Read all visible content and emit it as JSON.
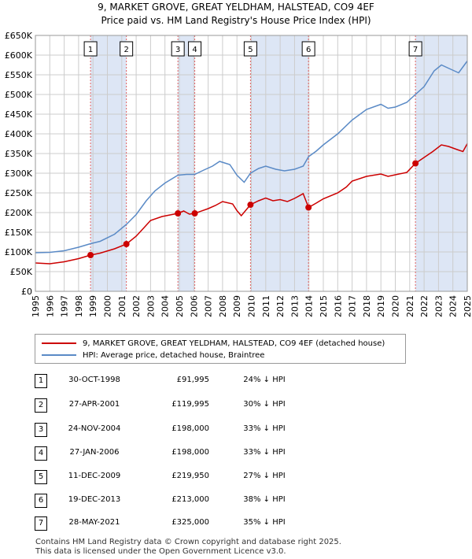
{
  "header": {
    "title_line1": "9, MARKET GROVE, GREAT YELDHAM, HALSTEAD, CO9 4EF",
    "title_line2": "Price paid vs. HM Land Registry's House Price Index (HPI)"
  },
  "colors": {
    "property": "#cc0000",
    "hpi": "#5a8ac6",
    "shade": "#dde6f5",
    "vline": "#e06060",
    "grid": "#cccccc"
  },
  "chart_data": {
    "type": "line",
    "xlim": [
      1995,
      2025
    ],
    "ylim": [
      0,
      650000
    ],
    "yticks": [
      {
        "v": 0,
        "label": "£0"
      },
      {
        "v": 50000,
        "label": "£50K"
      },
      {
        "v": 100000,
        "label": "£100K"
      },
      {
        "v": 150000,
        "label": "£150K"
      },
      {
        "v": 200000,
        "label": "£200K"
      },
      {
        "v": 250000,
        "label": "£250K"
      },
      {
        "v": 300000,
        "label": "£300K"
      },
      {
        "v": 350000,
        "label": "£350K"
      },
      {
        "v": 400000,
        "label": "£400K"
      },
      {
        "v": 450000,
        "label": "£450K"
      },
      {
        "v": 500000,
        "label": "£500K"
      },
      {
        "v": 550000,
        "label": "£550K"
      },
      {
        "v": 600000,
        "label": "£600K"
      },
      {
        "v": 650000,
        "label": "£650K"
      }
    ],
    "xticks": [
      "1995",
      "1996",
      "1997",
      "1998",
      "1999",
      "2000",
      "2001",
      "2002",
      "2003",
      "2004",
      "2005",
      "2006",
      "2007",
      "2008",
      "2009",
      "2010",
      "2011",
      "2012",
      "2013",
      "2014",
      "2015",
      "2016",
      "2017",
      "2018",
      "2019",
      "2020",
      "2021",
      "2022",
      "2023",
      "2024",
      "2025"
    ],
    "shaded_ranges": [
      [
        1998.83,
        2001.32
      ],
      [
        2004.9,
        2006.07
      ],
      [
        2009.94,
        2013.97
      ],
      [
        2021.4,
        2025.0
      ]
    ],
    "series": [
      {
        "name": "9, MARKET GROVE, GREAT YELDHAM, HALSTEAD, CO9 4EF (detached house)",
        "color": "#cc0000",
        "points": [
          [
            1995.0,
            72000
          ],
          [
            1996.0,
            70000
          ],
          [
            1997.0,
            75000
          ],
          [
            1998.0,
            83000
          ],
          [
            1998.83,
            91995
          ],
          [
            1999.5,
            97000
          ],
          [
            2000.5,
            108000
          ],
          [
            2001.32,
            119995
          ],
          [
            2002.0,
            140000
          ],
          [
            2002.5,
            160000
          ],
          [
            2003.0,
            180000
          ],
          [
            2003.8,
            190000
          ],
          [
            2004.9,
            198000
          ],
          [
            2005.3,
            204000
          ],
          [
            2005.7,
            196000
          ],
          [
            2006.07,
            198000
          ],
          [
            2007.0,
            210000
          ],
          [
            2007.5,
            218000
          ],
          [
            2008.0,
            228000
          ],
          [
            2008.7,
            222000
          ],
          [
            2009.0,
            205000
          ],
          [
            2009.3,
            192000
          ],
          [
            2009.94,
            219950
          ],
          [
            2010.5,
            230000
          ],
          [
            2011.0,
            237000
          ],
          [
            2011.5,
            230000
          ],
          [
            2012.0,
            233000
          ],
          [
            2012.5,
            228000
          ],
          [
            2013.0,
            236000
          ],
          [
            2013.6,
            248000
          ],
          [
            2013.97,
            213000
          ],
          [
            2014.5,
            224000
          ],
          [
            2015.0,
            235000
          ],
          [
            2016.0,
            250000
          ],
          [
            2016.6,
            265000
          ],
          [
            2017.0,
            280000
          ],
          [
            2018.0,
            292000
          ],
          [
            2019.0,
            298000
          ],
          [
            2019.5,
            292000
          ],
          [
            2020.0,
            296000
          ],
          [
            2020.8,
            302000
          ],
          [
            2021.4,
            325000
          ],
          [
            2022.0,
            340000
          ],
          [
            2022.6,
            355000
          ],
          [
            2023.2,
            372000
          ],
          [
            2023.7,
            368000
          ],
          [
            2024.3,
            360000
          ],
          [
            2024.7,
            355000
          ],
          [
            2025.0,
            375000
          ]
        ]
      },
      {
        "name": "HPI: Average price, detached house, Braintree",
        "color": "#5a8ac6",
        "points": [
          [
            1995.0,
            98000
          ],
          [
            1996.0,
            99000
          ],
          [
            1997.0,
            103000
          ],
          [
            1998.0,
            112000
          ],
          [
            1998.83,
            121000
          ],
          [
            1999.5,
            127000
          ],
          [
            2000.5,
            145000
          ],
          [
            2001.32,
            170000
          ],
          [
            2002.0,
            195000
          ],
          [
            2002.7,
            230000
          ],
          [
            2003.3,
            255000
          ],
          [
            2004.0,
            275000
          ],
          [
            2004.9,
            295000
          ],
          [
            2005.5,
            297000
          ],
          [
            2006.07,
            297000
          ],
          [
            2006.7,
            308000
          ],
          [
            2007.3,
            318000
          ],
          [
            2007.8,
            330000
          ],
          [
            2008.5,
            322000
          ],
          [
            2009.0,
            295000
          ],
          [
            2009.5,
            277000
          ],
          [
            2009.94,
            300000
          ],
          [
            2010.5,
            312000
          ],
          [
            2011.0,
            318000
          ],
          [
            2011.7,
            310000
          ],
          [
            2012.3,
            306000
          ],
          [
            2013.0,
            310000
          ],
          [
            2013.6,
            318000
          ],
          [
            2013.97,
            342000
          ],
          [
            2014.5,
            356000
          ],
          [
            2015.0,
            372000
          ],
          [
            2016.0,
            400000
          ],
          [
            2017.0,
            435000
          ],
          [
            2018.0,
            462000
          ],
          [
            2019.0,
            475000
          ],
          [
            2019.5,
            465000
          ],
          [
            2020.0,
            468000
          ],
          [
            2020.8,
            480000
          ],
          [
            2021.4,
            500000
          ],
          [
            2022.0,
            520000
          ],
          [
            2022.7,
            560000
          ],
          [
            2023.2,
            575000
          ],
          [
            2023.8,
            565000
          ],
          [
            2024.4,
            555000
          ],
          [
            2025.0,
            585000
          ]
        ]
      }
    ],
    "sales": [
      {
        "n": "1",
        "date": "30-OCT-1998",
        "t": 1998.83,
        "price": "£91,995",
        "value": 91995,
        "hpi": "24% ↓ HPI"
      },
      {
        "n": "2",
        "date": "27-APR-2001",
        "t": 2001.32,
        "price": "£119,995",
        "value": 119995,
        "hpi": "30% ↓ HPI"
      },
      {
        "n": "3",
        "date": "24-NOV-2004",
        "t": 2004.9,
        "price": "£198,000",
        "value": 198000,
        "hpi": "33% ↓ HPI"
      },
      {
        "n": "4",
        "date": "27-JAN-2006",
        "t": 2006.07,
        "price": "£198,000",
        "value": 198000,
        "hpi": "33% ↓ HPI"
      },
      {
        "n": "5",
        "date": "11-DEC-2009",
        "t": 2009.94,
        "price": "£219,950",
        "value": 219950,
        "hpi": "27% ↓ HPI"
      },
      {
        "n": "6",
        "date": "19-DEC-2013",
        "t": 2013.97,
        "price": "£213,000",
        "value": 213000,
        "hpi": "38% ↓ HPI"
      },
      {
        "n": "7",
        "date": "28-MAY-2021",
        "t": 2021.4,
        "price": "£325,000",
        "value": 325000,
        "hpi": "35% ↓ HPI"
      }
    ]
  },
  "legend": {
    "property_label": "9, MARKET GROVE, GREAT YELDHAM, HALSTEAD, CO9 4EF (detached house)",
    "hpi_label": "HPI: Average price, detached house, Braintree"
  },
  "footer": {
    "line1": "Contains HM Land Registry data © Crown copyright and database right 2025.",
    "line2": "This data is licensed under the Open Government Licence v3.0."
  }
}
